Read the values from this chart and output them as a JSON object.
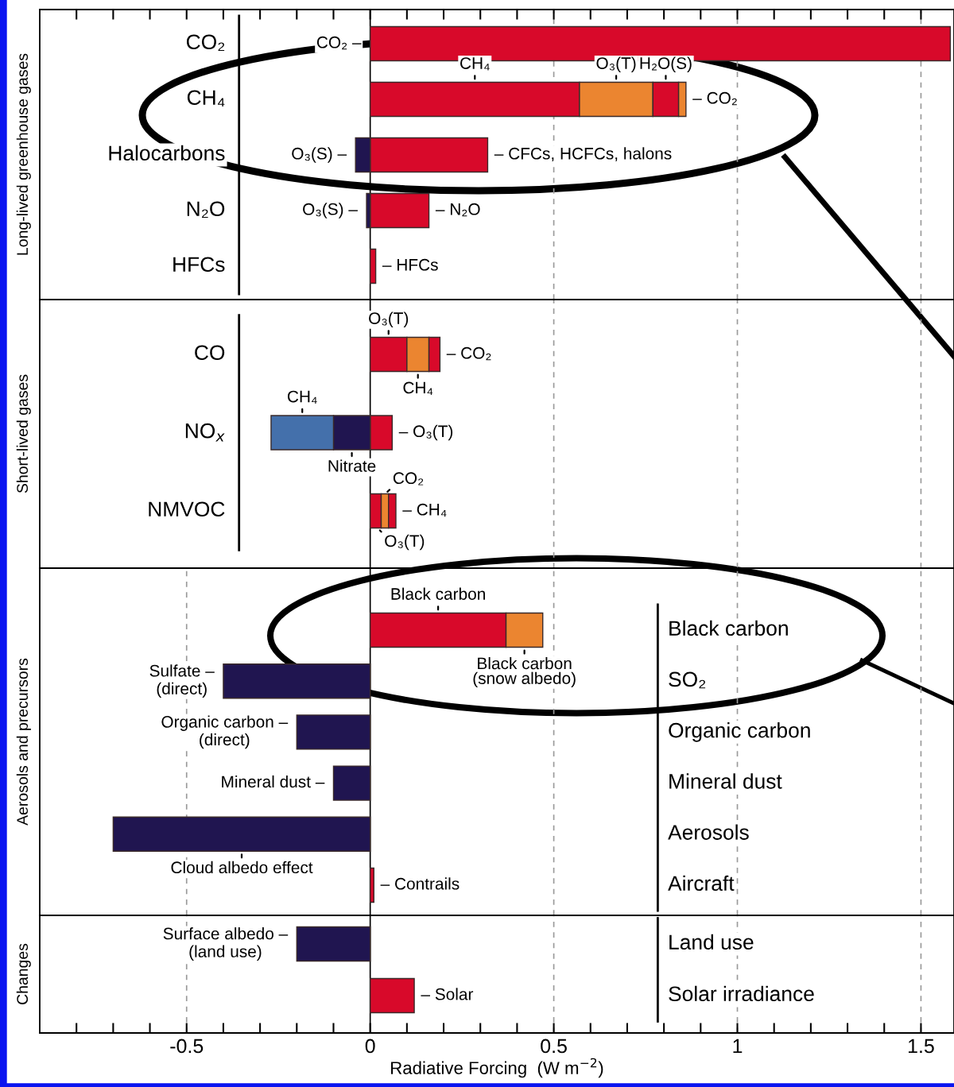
{
  "chart_data": [
    {
      "type": "bar",
      "orientation": "horizontal",
      "stacked": true,
      "ylabel": "Long-lived greenhouse gases",
      "tick_labels": "y",
      "categories": [
        "CO₂",
        "CH₄",
        "Halocarbons",
        "N₂O",
        "HFCs"
      ],
      "series": [
        {
          "values": [
            1.58,
            0.57,
            0.32,
            0.16,
            0.015
          ],
          "colors": [
            "#d8092a",
            "#d8092a",
            "#d8092a",
            "#d8092a",
            "#d8092a"
          ]
        },
        {
          "values": [
            null,
            0.2,
            -0.04,
            -0.01,
            null
          ],
          "colors": [
            null,
            "#eb8530",
            "#201550",
            "#201550",
            null
          ]
        },
        {
          "values": [
            null,
            0.07,
            null,
            null,
            null
          ],
          "colors": [
            null,
            "#d8092a",
            null,
            null,
            null
          ]
        },
        {
          "values": [
            null,
            0.02,
            null,
            null,
            null
          ],
          "colors": [
            null,
            "#eb8530",
            null,
            null,
            null
          ]
        }
      ],
      "xlim": [
        -0.9,
        1.59
      ],
      "xticks": [
        {
          "value": -0.8,
          "label": null
        },
        {
          "value": -0.7,
          "label": null
        },
        {
          "value": -0.6,
          "label": null
        },
        {
          "value": -0.5,
          "label": null
        },
        {
          "value": -0.4,
          "label": null
        },
        {
          "value": -0.3,
          "label": null
        },
        {
          "value": -0.2,
          "label": null
        },
        {
          "value": -0.1,
          "label": null
        },
        {
          "value": 0,
          "label": null
        },
        {
          "value": 0.1,
          "label": null
        },
        {
          "value": 0.2,
          "label": null
        },
        {
          "value": 0.3,
          "label": null
        },
        {
          "value": 0.4,
          "label": null
        },
        {
          "value": 0.5,
          "label": null
        },
        {
          "value": 0.6,
          "label": null
        },
        {
          "value": 0.7,
          "label": null
        },
        {
          "value": 0.8,
          "label": null
        },
        {
          "value": 0.9,
          "label": null
        },
        {
          "value": 1,
          "label": null
        },
        {
          "value": 1.1,
          "label": null
        },
        {
          "value": 1.2,
          "label": null
        },
        {
          "value": 1.3,
          "label": null
        },
        {
          "value": 1.4,
          "label": null
        },
        {
          "value": 1.5,
          "label": null
        }
      ],
      "ref_lines": [
        {
          "axis": "x",
          "value": 0,
          "color": "#000000",
          "line_style": "solid"
        },
        {
          "axis": "x",
          "value": 0.5,
          "color": "#9a9a9a",
          "line_style": "dashed"
        },
        {
          "axis": "x",
          "value": 1,
          "color": "#9a9a9a",
          "line_style": "dashed"
        },
        {
          "axis": "x",
          "value": 1.5,
          "color": "#9a9a9a",
          "line_style": "dashed"
        }
      ],
      "annotations": [
        {
          "text": "CO₂ –",
          "x": 0,
          "y": "CO₂"
        },
        "CH₄",
        "O₃(T)",
        "H₂O(S)",
        {
          "text": "– CO₂",
          "x": 0.86,
          "y": "CH₄"
        },
        {
          "text": "O₃(S) –",
          "x": -0.04,
          "y": "Halocarbons"
        },
        {
          "text": "– CFCs, HCFCs, halons",
          "x": 0.32,
          "y": "Halocarbons"
        },
        {
          "text": "O₃(S) –",
          "x": -0.01,
          "y": "N₂O"
        },
        {
          "text": "– N₂O",
          "x": 0.16,
          "y": "N₂O"
        },
        {
          "text": "– HFCs",
          "x": 0.015,
          "y": "HFCs"
        }
      ]
    },
    {
      "type": "bar",
      "orientation": "horizontal",
      "stacked": true,
      "ylabel": "Short-lived gases",
      "tick_labels": "y",
      "categories": [
        "CO",
        "NO$_{x}$",
        "NMVOC"
      ],
      "series": [
        {
          "values": [
            0.1,
            0.06,
            0.03
          ],
          "colors": [
            "#d8092a",
            "#d8092a",
            "#d8092a"
          ]
        },
        {
          "values": [
            0.06,
            -0.1,
            0.02
          ],
          "colors": [
            "#eb8530",
            "#201550",
            "#eb8530"
          ]
        },
        {
          "values": [
            0.03,
            -0.17,
            0.02
          ],
          "colors": [
            "#d8092a",
            "#4470ab",
            "#d8092a"
          ]
        }
      ],
      "xlim": [
        -0.9,
        1.59
      ],
      "ref_lines": [
        {
          "axis": "x",
          "value": 0,
          "color": "#000000",
          "line_style": "solid"
        },
        {
          "axis": "x",
          "value": 0.5,
          "color": "#9a9a9a",
          "line_style": "dashed"
        },
        {
          "axis": "x",
          "value": 1,
          "color": "#9a9a9a",
          "line_style": "dashed"
        },
        {
          "axis": "x",
          "value": 1.5,
          "color": "#9a9a9a",
          "line_style": "dashed"
        }
      ],
      "annotations": [
        "O₃(T)",
        "CH₄",
        {
          "text": "– CO₂",
          "x": 0.19,
          "y": "CO"
        },
        "CH₄",
        "Nitrate",
        {
          "text": "– O₃(T)",
          "x": 0.06,
          "y": "NO$_{x}$"
        },
        {
          "text": "CO₂",
          "x": 0.04,
          "y": "NMVOC"
        },
        {
          "text": "– CH₄",
          "x": 0.07,
          "y": "NMVOC"
        },
        {
          "text": "O₃(T)",
          "x": 0.02,
          "y": "NMVOC"
        }
      ]
    },
    {
      "type": "bar",
      "orientation": "horizontal",
      "stacked": true,
      "ylabel": "Aerosols and precursors",
      "tick_labels": "y",
      "categories": [
        "Black carbon",
        "SO₂",
        "Organic carbon",
        "Mineral dust",
        "Aerosols",
        "Aircraft"
      ],
      "series": [
        {
          "values": [
            0.37,
            -0.4,
            -0.2,
            -0.1,
            -0.7,
            0.01
          ],
          "colors": [
            "#d8092a",
            "#201550",
            "#201550",
            "#201550",
            "#201550",
            "#d8092a"
          ]
        },
        {
          "values": [
            0.1,
            null,
            null,
            null,
            null,
            null
          ],
          "colors": [
            "#eb8530",
            null,
            null,
            null,
            null,
            null
          ]
        }
      ],
      "xlim": [
        -0.9,
        1.59
      ],
      "ref_lines": [
        {
          "axis": "x",
          "value": 0,
          "color": "#000000",
          "line_style": "solid"
        },
        {
          "axis": "x",
          "value": -0.5,
          "color": "#9a9a9a",
          "line_style": "dashed"
        },
        {
          "axis": "x",
          "value": 0.5,
          "color": "#9a9a9a",
          "line_style": "dashed"
        },
        {
          "axis": "x",
          "value": 1,
          "color": "#9a9a9a",
          "line_style": "dashed"
        },
        {
          "axis": "x",
          "value": 1.5,
          "color": "#9a9a9a",
          "line_style": "dashed"
        }
      ],
      "annotations": [
        "Black carbon",
        "Black carbon\n(snow albedo)",
        {
          "text": "Sulfate –\n(direct)",
          "x": -0.4,
          "y": "SO₂"
        },
        {
          "text": "Organic carbon –\n(direct)",
          "x": -0.2,
          "y": "Organic carbon"
        },
        {
          "text": "Mineral dust –",
          "x": -0.1,
          "y": "Mineral dust"
        },
        "Cloud albedo effect",
        {
          "text": "– Contrails",
          "x": 0.01,
          "y": "Aircraft"
        }
      ]
    },
    {
      "type": "bar",
      "orientation": "horizontal",
      "stacked": true,
      "ylabel": "Changes",
      "xlabel": "Radiative Forcing  (W m$^{−2}$)",
      "categories": [
        "Land use",
        "Solar irradiance"
      ],
      "series": [
        {
          "values": [
            -0.2,
            0.12
          ],
          "colors": [
            "#201550",
            "#d8092a"
          ]
        }
      ],
      "xlim": [
        -0.9,
        1.59
      ],
      "xticks": [
        {
          "value": -0.8,
          "label": null
        },
        {
          "value": -0.7,
          "label": null
        },
        {
          "value": -0.6,
          "label": null
        },
        -0.5,
        {
          "value": -0.4,
          "label": null
        },
        {
          "value": -0.3,
          "label": null
        },
        {
          "value": -0.2,
          "label": null
        },
        {
          "value": -0.1,
          "label": null
        },
        0,
        {
          "value": 0.1,
          "label": null
        },
        {
          "value": 0.2,
          "label": null
        },
        {
          "value": 0.3,
          "label": null
        },
        {
          "value": 0.4,
          "label": null
        },
        0.5,
        {
          "value": 0.6,
          "label": null
        },
        {
          "value": 0.7,
          "label": null
        },
        {
          "value": 0.8,
          "label": null
        },
        {
          "value": 0.9,
          "label": null
        },
        1,
        {
          "value": 1.1,
          "label": null
        },
        {
          "value": 1.2,
          "label": null
        },
        {
          "value": 1.3,
          "label": null
        },
        {
          "value": 1.4,
          "label": null
        },
        1.5
      ],
      "ref_lines": [
        {
          "axis": "x",
          "value": 0,
          "color": "#000000",
          "line_style": "solid"
        },
        {
          "axis": "x",
          "value": -0.5,
          "color": "#9a9a9a",
          "line_style": "dashed"
        },
        {
          "axis": "x",
          "value": 0.5,
          "color": "#9a9a9a",
          "line_style": "dashed"
        },
        {
          "axis": "x",
          "value": 1,
          "color": "#9a9a9a",
          "line_style": "dashed"
        },
        {
          "axis": "x",
          "value": 1.5,
          "color": "#9a9a9a",
          "line_style": "dashed"
        }
      ],
      "annotations": [
        {
          "text": "Surface albedo –\n(land use)",
          "x": -0.2,
          "y": "Land use"
        },
        {
          "text": "– Solar",
          "x": 0.12,
          "y": "Solar irradiance"
        }
      ]
    }
  ]
}
